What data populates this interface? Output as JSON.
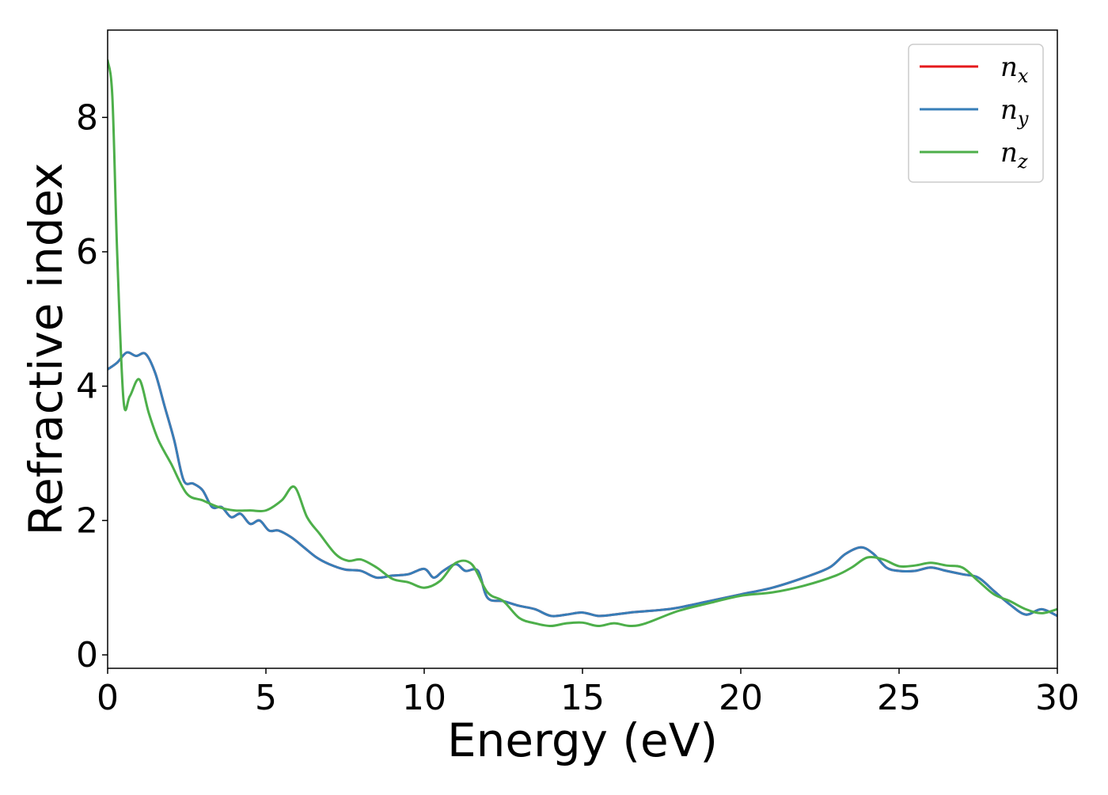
{
  "chart_data": {
    "type": "line",
    "title": "",
    "xlabel": "Energy (eV)",
    "ylabel": "Refractive index",
    "xlim": [
      0,
      30
    ],
    "ylim": [
      -0.2,
      9.3
    ],
    "xticks": [
      0,
      5,
      10,
      15,
      20,
      25,
      30
    ],
    "yticks": [
      0,
      2,
      4,
      6,
      8
    ],
    "xtick_labels": [
      "0",
      "5",
      "10",
      "15",
      "20",
      "25",
      "30"
    ],
    "ytick_labels": [
      "0",
      "2",
      "4",
      "6",
      "8"
    ],
    "grid": false,
    "legend_position": "top-right",
    "series": [
      {
        "name": "n_x",
        "legend_main": "n",
        "legend_sub": "x",
        "color": "#e41a1c",
        "x": [
          0,
          0.3,
          0.6,
          0.9,
          1.2,
          1.5,
          1.8,
          2.1,
          2.4,
          2.7,
          3.0,
          3.3,
          3.6,
          3.9,
          4.2,
          4.5,
          4.8,
          5.1,
          5.4,
          5.8,
          6.2,
          6.6,
          7.0,
          7.5,
          8.0,
          8.5,
          9.0,
          9.5,
          10.0,
          10.3,
          10.6,
          11.0,
          11.3,
          11.7,
          12.0,
          12.5,
          13.0,
          13.5,
          14.0,
          14.5,
          15.0,
          15.5,
          16.0,
          16.5,
          17.0,
          17.5,
          18.0,
          19.0,
          20.0,
          21.0,
          22.0,
          22.8,
          23.3,
          23.8,
          24.2,
          24.6,
          25.0,
          25.5,
          26.0,
          26.5,
          27.0,
          27.5,
          28.0,
          28.5,
          29.0,
          29.5,
          30.0
        ],
        "y": [
          4.25,
          4.35,
          4.5,
          4.45,
          4.48,
          4.2,
          3.7,
          3.2,
          2.6,
          2.55,
          2.45,
          2.2,
          2.2,
          2.05,
          2.1,
          1.95,
          2.0,
          1.85,
          1.85,
          1.75,
          1.6,
          1.45,
          1.35,
          1.27,
          1.25,
          1.15,
          1.18,
          1.2,
          1.28,
          1.15,
          1.25,
          1.35,
          1.25,
          1.25,
          0.85,
          0.8,
          0.73,
          0.68,
          0.58,
          0.6,
          0.63,
          0.58,
          0.6,
          0.63,
          0.65,
          0.67,
          0.7,
          0.8,
          0.9,
          1.0,
          1.15,
          1.3,
          1.5,
          1.6,
          1.5,
          1.3,
          1.25,
          1.25,
          1.3,
          1.25,
          1.2,
          1.15,
          0.95,
          0.75,
          0.6,
          0.68,
          0.58
        ]
      },
      {
        "name": "n_y",
        "legend_main": "n",
        "legend_sub": "y",
        "color": "#377eb8",
        "x": [
          0,
          0.3,
          0.6,
          0.9,
          1.2,
          1.5,
          1.8,
          2.1,
          2.4,
          2.7,
          3.0,
          3.3,
          3.6,
          3.9,
          4.2,
          4.5,
          4.8,
          5.1,
          5.4,
          5.8,
          6.2,
          6.6,
          7.0,
          7.5,
          8.0,
          8.5,
          9.0,
          9.5,
          10.0,
          10.3,
          10.6,
          11.0,
          11.3,
          11.7,
          12.0,
          12.5,
          13.0,
          13.5,
          14.0,
          14.5,
          15.0,
          15.5,
          16.0,
          16.5,
          17.0,
          17.5,
          18.0,
          19.0,
          20.0,
          21.0,
          22.0,
          22.8,
          23.3,
          23.8,
          24.2,
          24.6,
          25.0,
          25.5,
          26.0,
          26.5,
          27.0,
          27.5,
          28.0,
          28.5,
          29.0,
          29.5,
          30.0
        ],
        "y": [
          4.25,
          4.35,
          4.5,
          4.45,
          4.48,
          4.2,
          3.7,
          3.2,
          2.6,
          2.55,
          2.45,
          2.2,
          2.2,
          2.05,
          2.1,
          1.95,
          2.0,
          1.85,
          1.85,
          1.75,
          1.6,
          1.45,
          1.35,
          1.27,
          1.25,
          1.15,
          1.18,
          1.2,
          1.28,
          1.15,
          1.25,
          1.35,
          1.25,
          1.25,
          0.85,
          0.8,
          0.73,
          0.68,
          0.58,
          0.6,
          0.63,
          0.58,
          0.6,
          0.63,
          0.65,
          0.67,
          0.7,
          0.8,
          0.9,
          1.0,
          1.15,
          1.3,
          1.5,
          1.6,
          1.5,
          1.3,
          1.25,
          1.25,
          1.3,
          1.25,
          1.2,
          1.15,
          0.95,
          0.75,
          0.6,
          0.68,
          0.58
        ]
      },
      {
        "name": "n_z",
        "legend_main": "n",
        "legend_sub": "z",
        "color": "#4daf4a",
        "x": [
          0,
          0.15,
          0.3,
          0.5,
          0.7,
          1.0,
          1.3,
          1.6,
          2.0,
          2.5,
          3.0,
          3.5,
          4.0,
          4.5,
          5.0,
          5.5,
          5.9,
          6.3,
          6.7,
          7.2,
          7.6,
          8.0,
          8.5,
          9.0,
          9.5,
          10.0,
          10.5,
          11.0,
          11.5,
          12.0,
          12.5,
          13.0,
          13.5,
          14.0,
          14.5,
          15.0,
          15.5,
          16.0,
          16.5,
          17.0,
          18.0,
          19.0,
          20.0,
          21.0,
          22.0,
          23.0,
          23.5,
          24.0,
          24.5,
          25.0,
          25.5,
          26.0,
          26.5,
          27.0,
          27.5,
          28.0,
          28.5,
          29.0,
          29.5,
          30.0
        ],
        "y": [
          8.85,
          8.3,
          6.0,
          3.8,
          3.85,
          4.1,
          3.6,
          3.2,
          2.85,
          2.4,
          2.3,
          2.2,
          2.15,
          2.15,
          2.15,
          2.3,
          2.5,
          2.05,
          1.8,
          1.5,
          1.4,
          1.42,
          1.3,
          1.13,
          1.08,
          1.0,
          1.1,
          1.37,
          1.35,
          0.93,
          0.8,
          0.55,
          0.47,
          0.43,
          0.47,
          0.48,
          0.43,
          0.47,
          0.43,
          0.47,
          0.65,
          0.77,
          0.88,
          0.93,
          1.03,
          1.18,
          1.3,
          1.45,
          1.42,
          1.32,
          1.33,
          1.37,
          1.33,
          1.3,
          1.1,
          0.9,
          0.8,
          0.68,
          0.62,
          0.68
        ]
      }
    ]
  }
}
